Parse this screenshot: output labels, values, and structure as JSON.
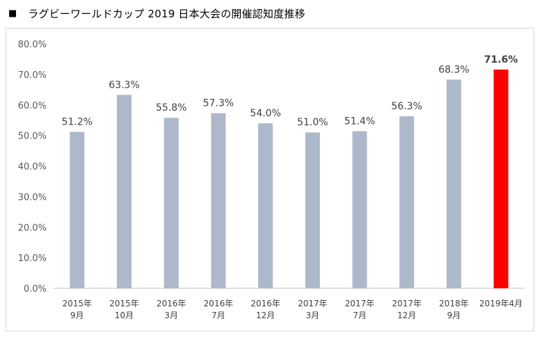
{
  "title": {
    "marker": "■",
    "text": "ラグビーワールドカップ 2019 日本大会の開催認知度推移"
  },
  "colors": {
    "bar_default": "#adb9ca",
    "bar_highlight": "#ff0000",
    "axis_text": "#595959",
    "axis_line": "#bfbfbf"
  },
  "chart_data": {
    "type": "bar",
    "categories": [
      [
        "2015年",
        "9月"
      ],
      [
        "2015年",
        "10月"
      ],
      [
        "2016年",
        "3月"
      ],
      [
        "2016年",
        "7月"
      ],
      [
        "2016年",
        "12月"
      ],
      [
        "2017年",
        "3月"
      ],
      [
        "2017年",
        "7月"
      ],
      [
        "2017年",
        "12月"
      ],
      [
        "2018年",
        "9月"
      ],
      [
        "2019年4月",
        ""
      ]
    ],
    "values": [
      51.2,
      63.3,
      55.8,
      57.3,
      54.0,
      51.0,
      51.4,
      56.3,
      68.3,
      71.6
    ],
    "value_labels": [
      "51.2%",
      "63.3%",
      "55.8%",
      "57.3%",
      "54.0%",
      "51.0%",
      "51.4%",
      "56.3%",
      "68.3%",
      "71.6%"
    ],
    "highlight_index": 9,
    "ylim": [
      0,
      80
    ],
    "yticks": [
      "0.0%",
      "10.0%",
      "20.0%",
      "30.0%",
      "40.0%",
      "50.0%",
      "60.0%",
      "70.0%",
      "80.0%"
    ],
    "grid": false,
    "legend": "none"
  }
}
